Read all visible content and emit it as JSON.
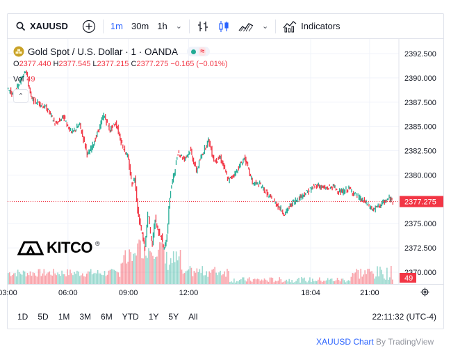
{
  "toolbar": {
    "symbol": "XAUUSD",
    "timeframes": [
      "1m",
      "30m",
      "1h"
    ],
    "active_timeframe": "1m",
    "indicators_label": "Indicators"
  },
  "legend": {
    "title": "Gold Spot / U.S. Dollar · 1 · OANDA",
    "open_label": "O",
    "open": "2377.440",
    "high_label": "H",
    "high": "2377.545",
    "low_label": "L",
    "low": "2377.215",
    "close_label": "C",
    "close": "2377.275",
    "change": "−0.165 (−0.01%)",
    "vol_label": "Vol",
    "vol_value": "49",
    "wave_symbol": "≈"
  },
  "logo": {
    "text": "KITCO"
  },
  "range_buttons": [
    "1D",
    "5D",
    "1M",
    "3M",
    "6M",
    "YTD",
    "1Y",
    "5Y",
    "All"
  ],
  "clock": "22:11:32 (UTC-4)",
  "credit": {
    "symbol": "XAUUSD",
    "chart": "Chart",
    "by": "By",
    "brand": "TradingView"
  },
  "colors": {
    "up": "#22ab94",
    "down": "#f23645",
    "accent": "#2962ff"
  },
  "chart_data": {
    "type": "line",
    "title": "Gold Spot / U.S. Dollar · 1 · OANDA",
    "y_ticks": [
      "2392.500",
      "2390.000",
      "2387.500",
      "2385.000",
      "2382.500",
      "2380.000",
      "2377.275",
      "2375.000",
      "2372.500",
      "2370.000"
    ],
    "ylim": [
      2369.5,
      2393.3
    ],
    "last_price": 2377.275,
    "last_price_label": "2377.275",
    "volume_label": "49",
    "x_ticks": [
      "03:00",
      "06:00",
      "09:00",
      "12:00",
      "18:04",
      "21:00"
    ],
    "x_tick_hours": [
      3,
      6,
      9,
      12,
      18.07,
      21
    ],
    "xlim": [
      3,
      22.18
    ],
    "series": [
      {
        "name": "XAUUSD",
        "x": [
          3.0,
          3.3,
          3.6,
          3.9,
          4.2,
          4.6,
          5.0,
          5.4,
          5.8,
          6.2,
          6.6,
          7.0,
          7.4,
          7.8,
          8.1,
          8.4,
          8.7,
          9.0,
          9.2,
          9.35,
          9.5,
          9.7,
          9.85,
          10.0,
          10.2,
          10.35,
          10.5,
          10.65,
          10.8,
          10.95,
          11.1,
          11.3,
          11.5,
          11.8,
          12.1,
          12.4,
          12.7,
          13.0,
          13.3,
          13.6,
          14.0,
          14.4,
          14.8,
          15.2,
          15.6,
          16.0,
          16.4,
          16.8,
          17.2,
          17.6,
          18.0,
          18.4,
          18.8,
          19.2,
          19.6,
          20.0,
          20.4,
          20.8,
          21.2,
          21.6,
          22.0,
          22.18
        ],
        "values": [
          2389.0,
          2388.2,
          2389.4,
          2391.0,
          2387.8,
          2387.4,
          2386.8,
          2385.2,
          2386.0,
          2384.3,
          2385.2,
          2382.0,
          2383.8,
          2386.2,
          2384.6,
          2385.4,
          2383.2,
          2381.8,
          2379.0,
          2379.8,
          2376.0,
          2374.0,
          2372.4,
          2376.2,
          2372.6,
          2375.6,
          2374.2,
          2373.8,
          2372.2,
          2374.0,
          2378.2,
          2380.2,
          2382.4,
          2381.6,
          2382.6,
          2380.4,
          2382.2,
          2383.6,
          2381.4,
          2381.8,
          2379.4,
          2380.4,
          2381.8,
          2379.2,
          2379.0,
          2377.8,
          2377.0,
          2376.0,
          2377.2,
          2377.8,
          2378.4,
          2379.0,
          2378.6,
          2378.8,
          2378.2,
          2378.6,
          2377.8,
          2377.2,
          2376.4,
          2377.0,
          2377.6,
          2377.275
        ]
      }
    ]
  }
}
